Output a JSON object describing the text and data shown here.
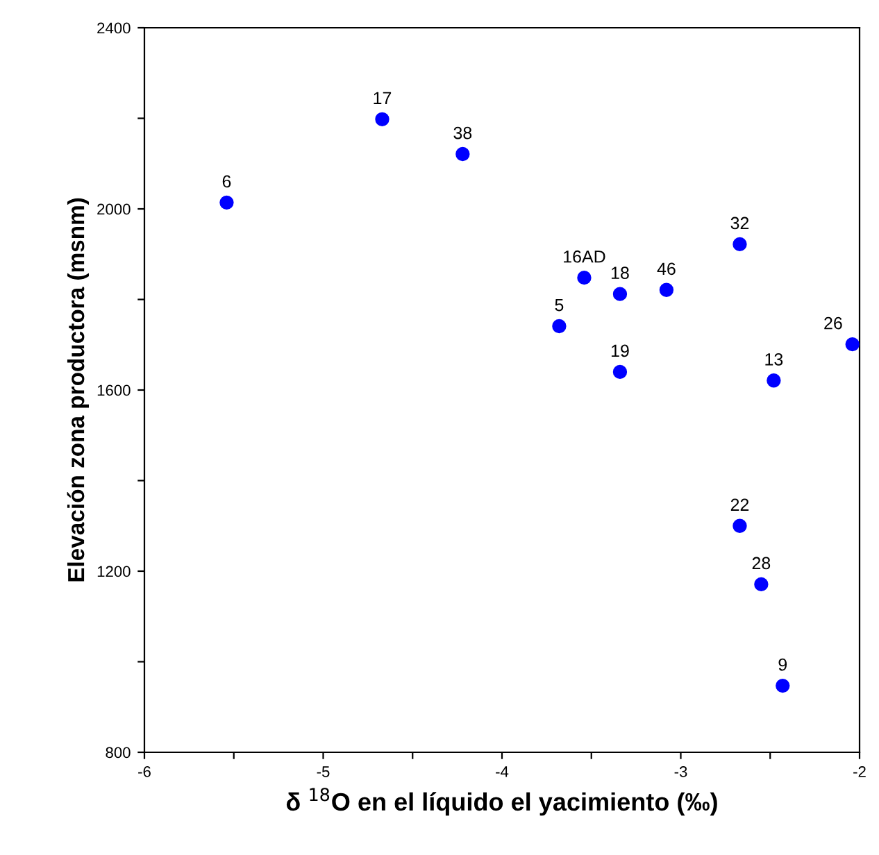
{
  "chart_data": {
    "type": "scatter",
    "xlabel": "δ $^{18}$O en el líquido el yacimiento (‰)",
    "ylabel": "Elevación zona productora (msnm)",
    "x": [
      -5.54,
      -4.67,
      -4.22,
      -3.54,
      -3.34,
      -3.08,
      -2.67,
      -3.68,
      -3.34,
      -2.04,
      -2.48,
      -2.67,
      -2.55,
      -2.43
    ],
    "series": [
      {
        "color": "#0000ff",
        "values": [
          2014,
          2198,
          2121,
          1848,
          1812,
          1821,
          1922,
          1741,
          1640,
          1701,
          1621,
          1300,
          1171,
          947
        ]
      }
    ],
    "annotations": [
      {
        "text": "6",
        "x": -5.54,
        "y": 2014
      },
      {
        "text": "17",
        "x": -4.67,
        "y": 2198
      },
      {
        "text": "38",
        "x": -4.22,
        "y": 2121
      },
      {
        "text": "16AD",
        "x": -3.54,
        "y": 1848
      },
      {
        "text": "18",
        "x": -3.34,
        "y": 1812
      },
      {
        "text": "46",
        "x": -3.08,
        "y": 1821
      },
      {
        "text": "32",
        "x": -2.67,
        "y": 1922
      },
      {
        "text": "5",
        "x": -3.68,
        "y": 1741
      },
      {
        "text": "19",
        "x": -3.34,
        "y": 1640
      },
      {
        "text": "26",
        "x": -2.04,
        "y": 1701
      },
      {
        "text": "13",
        "x": -2.48,
        "y": 1621
      },
      {
        "text": "22",
        "x": -2.67,
        "y": 1300
      },
      {
        "text": "28",
        "x": -2.55,
        "y": 1171
      },
      {
        "text": "9",
        "x": -2.43,
        "y": 947
      }
    ],
    "xlim": [
      -6,
      -2
    ],
    "ylim": [
      800,
      2400
    ],
    "xticks": [
      -6,
      {
        "value": -5.5,
        "label": null
      },
      -5,
      {
        "value": -4.5,
        "label": null
      },
      -4,
      {
        "value": -3.5,
        "label": null
      },
      -3,
      {
        "value": -2.5,
        "label": null
      },
      -2
    ],
    "yticks": [
      800,
      {
        "value": 1000,
        "label": null
      },
      1200,
      {
        "value": 1400,
        "label": null
      },
      1600,
      {
        "value": 1800,
        "label": null
      },
      2000,
      {
        "value": 2200,
        "label": null
      },
      2400
    ],
    "marker": "circle",
    "grid": false,
    "legend": false
  }
}
